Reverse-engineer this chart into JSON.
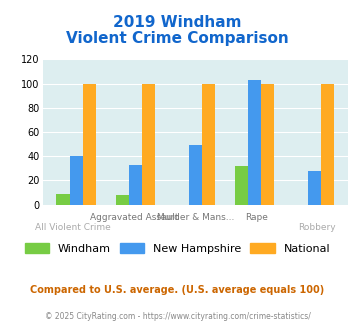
{
  "title_line1": "2019 Windham",
  "title_line2": "Violent Crime Comparison",
  "top_labels": [
    "",
    "Aggravated Assault",
    "Murder & Mans...",
    "Rape",
    ""
  ],
  "bot_labels": [
    "All Violent Crime",
    "",
    "",
    "",
    "Robbery"
  ],
  "windham": [
    9,
    8,
    0,
    32,
    0
  ],
  "new_hampshire": [
    40,
    33,
    49,
    103,
    28
  ],
  "national": [
    100,
    100,
    100,
    100,
    100
  ],
  "windham_color": "#77cc44",
  "nh_color": "#4499ee",
  "national_color": "#ffaa22",
  "bg_color": "#ddeef0",
  "title_color": "#1166cc",
  "footer_color": "#cc6600",
  "copyright_color": "#888888",
  "ylim": [
    0,
    120
  ],
  "yticks": [
    0,
    20,
    40,
    60,
    80,
    100,
    120
  ],
  "footer_text": "Compared to U.S. average. (U.S. average equals 100)",
  "copyright_text": "© 2025 CityRating.com - https://www.cityrating.com/crime-statistics/"
}
